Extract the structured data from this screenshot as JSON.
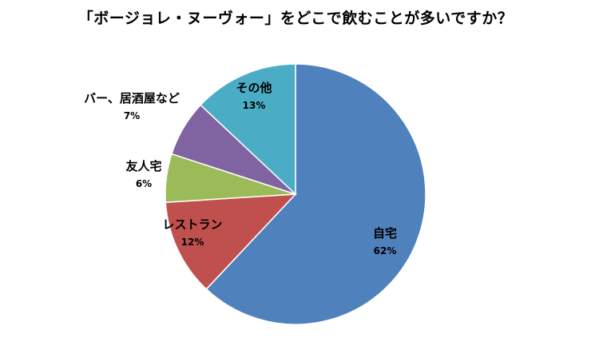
{
  "chart_data": {
    "type": "pie",
    "title": "「ボージョレ・ヌーヴォー」をどこで飲むことが多いですか？",
    "categories": [
      "自宅",
      "レストラン",
      "友人宅",
      "バー、居酒屋など",
      "その他"
    ],
    "values": [
      62,
      12,
      6,
      7,
      13
    ],
    "value_labels": [
      "62%",
      "12%",
      "6%",
      "7%",
      "13%"
    ],
    "colors": [
      "#4F81BD",
      "#C0504D",
      "#9BBB59",
      "#8064A2",
      "#4BACC6"
    ],
    "start": "12 o'clock, clockwise"
  }
}
